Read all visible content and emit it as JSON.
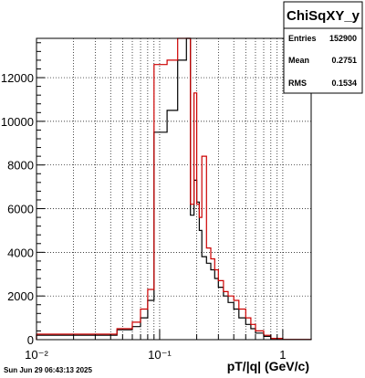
{
  "chart_data": {
    "type": "step-histogram",
    "x_scale": "log",
    "xlim": [
      0.01,
      1.7
    ],
    "ylim": [
      0,
      13800
    ],
    "xlabel": "pT/|q| (GeV/c)",
    "grid": true,
    "x_ticks": [
      {
        "value": 0.01,
        "label": "10⁻²"
      },
      {
        "value": 0.1,
        "label": "10⁻¹"
      },
      {
        "value": 1,
        "label": "1"
      }
    ],
    "y_ticks": [
      0,
      2000,
      4000,
      6000,
      8000,
      10000,
      12000
    ],
    "series": [
      {
        "color": "#000000",
        "edges": [
          0.01,
          0.045,
          0.06,
          0.07,
          0.08,
          0.09,
          0.115,
          0.14,
          0.165,
          0.178,
          0.19,
          0.2,
          0.21,
          0.22,
          0.24,
          0.26,
          0.28,
          0.3,
          0.33,
          0.36,
          0.4,
          0.44,
          0.5,
          0.55,
          0.6,
          0.7,
          0.8,
          1.0,
          1.7
        ],
        "counts": [
          200,
          450,
          600,
          1000,
          1800,
          9500,
          10500,
          12800,
          13800,
          5700,
          7300,
          6300,
          5000,
          3800,
          3500,
          3200,
          2800,
          2400,
          2000,
          1700,
          1400,
          1000,
          700,
          500,
          300,
          150,
          50,
          10
        ]
      },
      {
        "color": "#cc0000",
        "edges": [
          0.01,
          0.045,
          0.06,
          0.07,
          0.08,
          0.09,
          0.115,
          0.14,
          0.165,
          0.178,
          0.19,
          0.2,
          0.21,
          0.22,
          0.24,
          0.26,
          0.28,
          0.3,
          0.33,
          0.36,
          0.4,
          0.44,
          0.5,
          0.55,
          0.6,
          0.7,
          0.8,
          1.0,
          1.7
        ],
        "counts": [
          250,
          500,
          800,
          1400,
          2300,
          12600,
          12800,
          13800,
          13800,
          6200,
          11300,
          6200,
          5600,
          8400,
          4200,
          3700,
          3200,
          2700,
          2200,
          2000,
          1800,
          1400,
          1000,
          700,
          400,
          200,
          60,
          10
        ]
      }
    ]
  },
  "stats": {
    "title": "ChiSqXY_y",
    "rows": [
      {
        "key": "Entries",
        "value": "152900"
      },
      {
        "key": "Mean",
        "value": "0.2751"
      },
      {
        "key": "RMS",
        "value": "0.1534"
      }
    ]
  },
  "timestamp": "Sun Jun 29 06:43:13 2025"
}
